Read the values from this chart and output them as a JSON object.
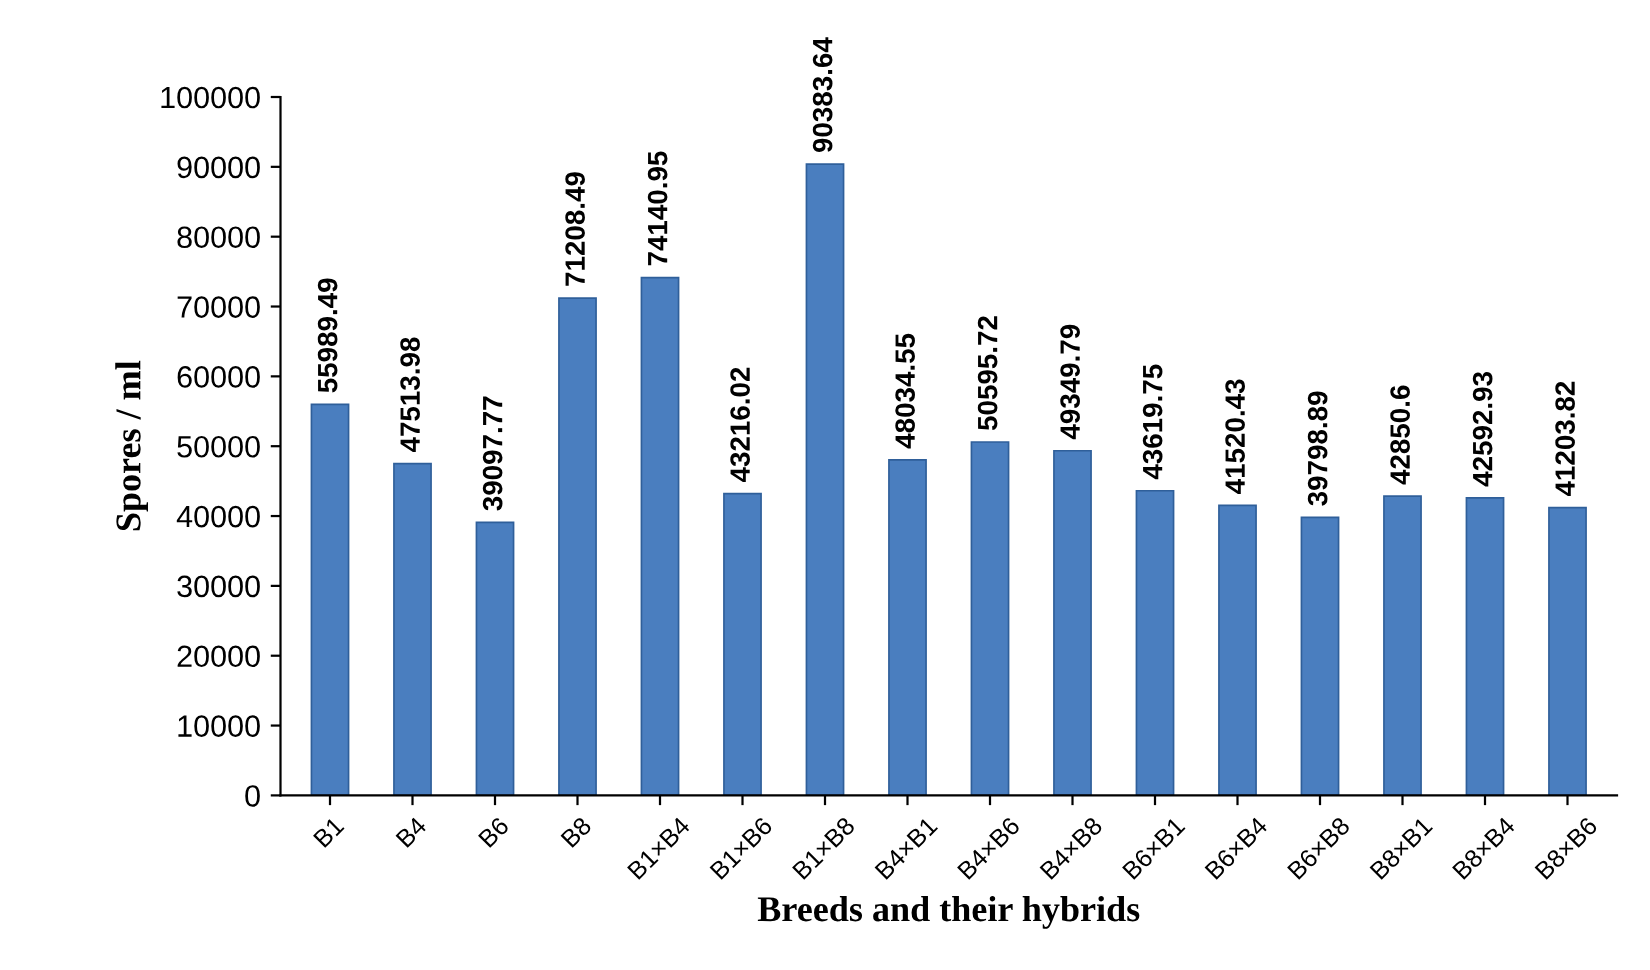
{
  "chart_data": {
    "type": "bar",
    "xlabel": "Breeds and their hybrids",
    "ylabel": "Spores / ml",
    "categories": [
      "B1",
      "B4",
      "B6",
      "B8",
      "B1×B4",
      "B1×B6",
      "B1×B8",
      "B4×B1",
      "B4×B6",
      "B4×B8",
      "B6×B1",
      "B6×B4",
      "B6×B8",
      "B8×B1",
      "B8×B4",
      "B8×B6"
    ],
    "values": [
      55989.49,
      47513.98,
      39097.77,
      71208.49,
      74140.95,
      43216.02,
      90383.64,
      48034.55,
      50595.72,
      49349.79,
      43619.75,
      41520.43,
      39798.89,
      42850.6,
      42592.93,
      41203.82
    ],
    "color": "#4a7ebf",
    "ylim": [
      0,
      100000
    ],
    "yticks": [
      0,
      10000,
      20000,
      30000,
      40000,
      50000,
      60000,
      70000,
      80000,
      90000,
      100000
    ],
    "data_labels": true,
    "grid": false
  }
}
